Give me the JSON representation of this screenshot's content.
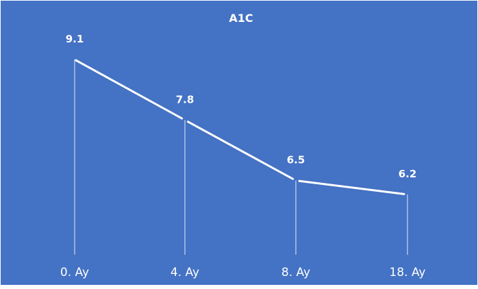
{
  "chart_data": {
    "type": "line",
    "title": "A1C",
    "categories": [
      "0. Ay",
      "4. Ay",
      "8. Ay",
      "18. Ay"
    ],
    "series": [
      {
        "values": [
          9.1,
          7.8,
          6.5,
          6.2
        ],
        "data_labels": [
          "9.1",
          "7.8",
          "6.5",
          "6.2"
        ]
      }
    ],
    "ylim": [
      0,
      10.5
    ],
    "grid": false,
    "legend": "none",
    "drop_lines": true,
    "colors": {
      "background": "#4472C4",
      "frame": "#FFFFFF",
      "line": "#FFFFFF",
      "drop_line": "#FFFFFF",
      "text": "#FFFFFF"
    }
  }
}
